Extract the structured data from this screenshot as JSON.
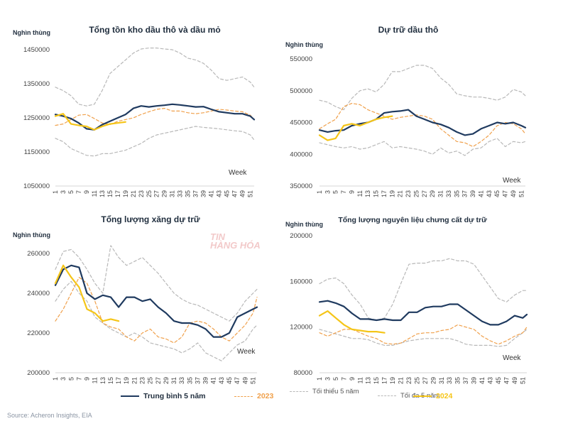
{
  "source": "Source: Acheron Insights, EIA",
  "watermark": [
    "TIN",
    "HÀNG HÓA"
  ],
  "legend": [
    {
      "key": "avg",
      "label": "Trung bình 5 năm",
      "color": "#1f3a5f",
      "dash": "solid"
    },
    {
      "key": "y2023",
      "label": "2023",
      "color": "#f0a04b",
      "dash": "dashed"
    },
    {
      "key": "min",
      "label": "Tối thiểu 5 năm",
      "color": "#b8b8b8",
      "dash": "dashed"
    },
    {
      "key": "max",
      "label": "Tối đa 5 năm",
      "color": "#b8b8b8",
      "dash": "dashed"
    },
    {
      "key": "y2024",
      "label": "2024",
      "color": "#f5c518",
      "dash": "solid"
    }
  ],
  "chart_data": [
    {
      "type": "line",
      "title": "Tổng tồn kho dầu thô và dầu mỏ",
      "ylabel": "Nghìn thùng",
      "xlabel": "Week",
      "ylim": [
        1050000,
        1450000
      ],
      "yticks": [
        1050000,
        1150000,
        1250000,
        1350000,
        1450000
      ],
      "xticks": [
        1,
        3,
        5,
        7,
        9,
        11,
        13,
        15,
        17,
        19,
        21,
        23,
        25,
        27,
        29,
        31,
        33,
        35,
        37,
        39,
        41,
        43,
        45,
        47,
        49,
        51
      ],
      "weeks": [
        1,
        3,
        5,
        7,
        9,
        11,
        13,
        15,
        17,
        19,
        21,
        23,
        25,
        27,
        29,
        31,
        33,
        35,
        37,
        39,
        41,
        43,
        45,
        47,
        49,
        51,
        52
      ],
      "series": [
        {
          "key": "max",
          "name": "Tối đa 5 năm",
          "values": [
            1340000,
            1330000,
            1315000,
            1290000,
            1285000,
            1290000,
            1330000,
            1380000,
            1400000,
            1420000,
            1440000,
            1452000,
            1455000,
            1455000,
            1452000,
            1450000,
            1440000,
            1425000,
            1420000,
            1410000,
            1390000,
            1365000,
            1360000,
            1365000,
            1370000,
            1355000,
            1340000
          ]
        },
        {
          "key": "min",
          "name": "Tối thiểu 5 năm",
          "values": [
            1190000,
            1180000,
            1160000,
            1150000,
            1140000,
            1138000,
            1145000,
            1145000,
            1150000,
            1155000,
            1165000,
            1175000,
            1190000,
            1200000,
            1205000,
            1210000,
            1215000,
            1220000,
            1225000,
            1222000,
            1220000,
            1218000,
            1215000,
            1212000,
            1210000,
            1200000,
            1185000
          ]
        },
        {
          "key": "y2023",
          "name": "2023",
          "values": [
            1228000,
            1232000,
            1245000,
            1258000,
            1260000,
            1248000,
            1235000,
            1230000,
            1240000,
            1245000,
            1250000,
            1260000,
            1268000,
            1275000,
            1278000,
            1270000,
            1270000,
            1265000,
            1262000,
            1265000,
            1270000,
            1275000,
            1273000,
            1270000,
            1268000,
            1258000,
            1245000
          ]
        },
        {
          "key": "avg",
          "name": "Trung bình 5 năm",
          "values": [
            1260000,
            1255000,
            1248000,
            1235000,
            1218000,
            1215000,
            1230000,
            1240000,
            1250000,
            1260000,
            1278000,
            1285000,
            1282000,
            1285000,
            1287000,
            1290000,
            1288000,
            1285000,
            1282000,
            1283000,
            1275000,
            1268000,
            1265000,
            1262000,
            1262000,
            1255000,
            1245000
          ]
        },
        {
          "key": "y2024",
          "name": "2024",
          "values": [
            1255000,
            1262000,
            1232000,
            1228000,
            1225000,
            1215000,
            1225000,
            1232000,
            1235000,
            1238000
          ]
        }
      ]
    },
    {
      "type": "line",
      "title": "Dự trữ dầu thô",
      "ylabel": "Nghìn thùng",
      "xlabel": "Week",
      "ylim": [
        350000,
        550000
      ],
      "yticks": [
        350000,
        400000,
        450000,
        500000,
        550000
      ],
      "xticks": [
        1,
        3,
        5,
        7,
        9,
        11,
        13,
        15,
        17,
        19,
        21,
        23,
        25,
        27,
        29,
        31,
        33,
        35,
        37,
        39,
        41,
        43,
        45,
        47,
        49,
        51
      ],
      "weeks": [
        1,
        3,
        5,
        7,
        9,
        11,
        13,
        15,
        17,
        19,
        21,
        23,
        25,
        27,
        29,
        31,
        33,
        35,
        37,
        39,
        41,
        43,
        45,
        47,
        49,
        51,
        52
      ],
      "series": [
        {
          "key": "max",
          "name": "Tối đa 5 năm",
          "values": [
            485000,
            482000,
            475000,
            470000,
            488000,
            500000,
            503000,
            498000,
            510000,
            530000,
            530000,
            535000,
            540000,
            540000,
            535000,
            520000,
            510000,
            495000,
            492000,
            490000,
            490000,
            488000,
            485000,
            490000,
            502000,
            498000,
            492000
          ]
        },
        {
          "key": "min",
          "name": "Tối thiểu 5 năm",
          "values": [
            418000,
            415000,
            412000,
            410000,
            412000,
            408000,
            410000,
            415000,
            420000,
            410000,
            412000,
            410000,
            408000,
            405000,
            400000,
            410000,
            402000,
            405000,
            398000,
            408000,
            410000,
            420000,
            425000,
            412000,
            420000,
            418000,
            420000
          ]
        },
        {
          "key": "y2023",
          "name": "2023",
          "values": [
            440000,
            448000,
            455000,
            475000,
            480000,
            478000,
            470000,
            465000,
            460000,
            455000,
            458000,
            460000,
            462000,
            460000,
            455000,
            440000,
            430000,
            420000,
            418000,
            412000,
            420000,
            430000,
            445000,
            450000,
            448000,
            440000,
            432000
          ]
        },
        {
          "key": "avg",
          "name": "Trung bình 5 năm",
          "values": [
            438000,
            435000,
            437000,
            438000,
            445000,
            448000,
            450000,
            455000,
            465000,
            467000,
            468000,
            470000,
            460000,
            455000,
            450000,
            447000,
            442000,
            435000,
            430000,
            432000,
            440000,
            445000,
            450000,
            448000,
            450000,
            445000,
            442000
          ]
        },
        {
          "key": "y2024",
          "name": "2024",
          "values": [
            430000,
            422000,
            425000,
            445000,
            448000,
            445000,
            450000,
            455000,
            458000,
            460000
          ]
        }
      ]
    },
    {
      "type": "line",
      "title": "Tổng lượng xăng dự trữ",
      "ylabel": "Nghìn thùng",
      "xlabel": "Week",
      "ylim": [
        200000,
        260000
      ],
      "yticks": [
        200000,
        220000,
        240000,
        260000
      ],
      "xticks": [
        1,
        3,
        5,
        7,
        9,
        11,
        13,
        15,
        17,
        19,
        21,
        23,
        25,
        27,
        29,
        31,
        33,
        35,
        37,
        39,
        41,
        43,
        45,
        47,
        49,
        51
      ],
      "weeks": [
        1,
        3,
        5,
        7,
        9,
        11,
        13,
        15,
        17,
        19,
        21,
        23,
        25,
        27,
        29,
        31,
        33,
        35,
        37,
        39,
        41,
        43,
        45,
        47,
        49,
        51,
        52
      ],
      "series": [
        {
          "key": "max",
          "name": "Tối đa 5 năm",
          "values": [
            252000,
            261000,
            262000,
            258000,
            252000,
            245000,
            240000,
            264000,
            258000,
            254000,
            256000,
            258000,
            254000,
            250000,
            245000,
            240000,
            237000,
            235000,
            234000,
            232000,
            230000,
            228000,
            226000,
            230000,
            236000,
            240000,
            242000
          ]
        },
        {
          "key": "min",
          "name": "Tối thiểu 5 năm",
          "values": [
            236000,
            242000,
            246000,
            240000,
            236000,
            228000,
            225000,
            222000,
            220000,
            218000,
            220000,
            218000,
            215000,
            214000,
            213000,
            212000,
            210000,
            212000,
            215000,
            210000,
            208000,
            206000,
            210000,
            214000,
            216000,
            222000,
            224000
          ]
        },
        {
          "key": "y2023",
          "name": "2023",
          "values": [
            226000,
            232000,
            240000,
            248000,
            245000,
            236000,
            225000,
            223000,
            222000,
            218000,
            216000,
            220000,
            222000,
            218000,
            217000,
            215000,
            218000,
            225000,
            226000,
            225000,
            222000,
            218000,
            216000,
            220000,
            224000,
            230000,
            238000
          ]
        },
        {
          "key": "avg",
          "name": "Trung bình 5 năm",
          "values": [
            244000,
            252000,
            254000,
            253000,
            240000,
            237000,
            239000,
            238000,
            233000,
            238000,
            238000,
            236000,
            237000,
            233000,
            230000,
            226000,
            225000,
            225000,
            224000,
            222000,
            218000,
            218000,
            220000,
            228000,
            230000,
            232000,
            233000
          ]
        },
        {
          "key": "y2024",
          "name": "2024",
          "values": [
            245000,
            254000,
            248000,
            243000,
            232000,
            230000,
            226000,
            227000,
            226000
          ]
        }
      ]
    },
    {
      "type": "line",
      "title": "Tổng lượng nguyên liệu chưng cất dự trữ",
      "ylabel": "Nghìn thùng",
      "xlabel": "Week",
      "ylim": [
        80000,
        200000
      ],
      "yticks": [
        80000,
        120000,
        160000,
        200000
      ],
      "xticks": [
        1,
        3,
        5,
        7,
        9,
        11,
        13,
        15,
        17,
        19,
        21,
        23,
        25,
        27,
        29,
        31,
        33,
        35,
        37,
        39,
        41,
        43,
        45,
        47,
        49,
        51
      ],
      "weeks": [
        1,
        3,
        5,
        7,
        9,
        11,
        13,
        15,
        17,
        19,
        21,
        23,
        25,
        27,
        29,
        31,
        33,
        35,
        37,
        39,
        41,
        43,
        45,
        47,
        49,
        51,
        52
      ],
      "series": [
        {
          "key": "max",
          "name": "Tối đa 5 năm",
          "values": [
            158000,
            162000,
            163000,
            158000,
            148000,
            140000,
            128000,
            126000,
            128000,
            140000,
            158000,
            175000,
            176000,
            176000,
            178000,
            178000,
            180000,
            178000,
            178000,
            175000,
            165000,
            155000,
            145000,
            142000,
            148000,
            152000,
            152000
          ]
        },
        {
          "key": "min",
          "name": "Tối thiểu 5 năm",
          "values": [
            118000,
            116000,
            114000,
            112000,
            110000,
            110000,
            109000,
            106000,
            104000,
            104000,
            106000,
            108000,
            109000,
            110000,
            110000,
            110000,
            110000,
            108000,
            105000,
            104000,
            104000,
            104000,
            103000,
            104000,
            110000,
            115000,
            118000
          ]
        },
        {
          "key": "y2023",
          "name": "2023",
          "values": [
            115000,
            112000,
            115000,
            118000,
            118000,
            115000,
            112000,
            110000,
            106000,
            105000,
            106000,
            110000,
            114000,
            115000,
            115000,
            117000,
            118000,
            122000,
            120000,
            118000,
            112000,
            108000,
            105000,
            108000,
            112000,
            115000,
            120000
          ]
        },
        {
          "key": "avg",
          "name": "Trung bình 5 năm",
          "values": [
            142000,
            143000,
            141000,
            138000,
            132000,
            127000,
            127000,
            126000,
            127000,
            126000,
            126000,
            133000,
            133000,
            137000,
            138000,
            138000,
            140000,
            140000,
            135000,
            130000,
            125000,
            122000,
            122000,
            125000,
            130000,
            128000,
            131000
          ]
        },
        {
          "key": "y2024",
          "name": "2024",
          "values": [
            130000,
            134000,
            128000,
            122000,
            118000,
            117000,
            116000,
            116000,
            115000
          ]
        }
      ]
    }
  ]
}
